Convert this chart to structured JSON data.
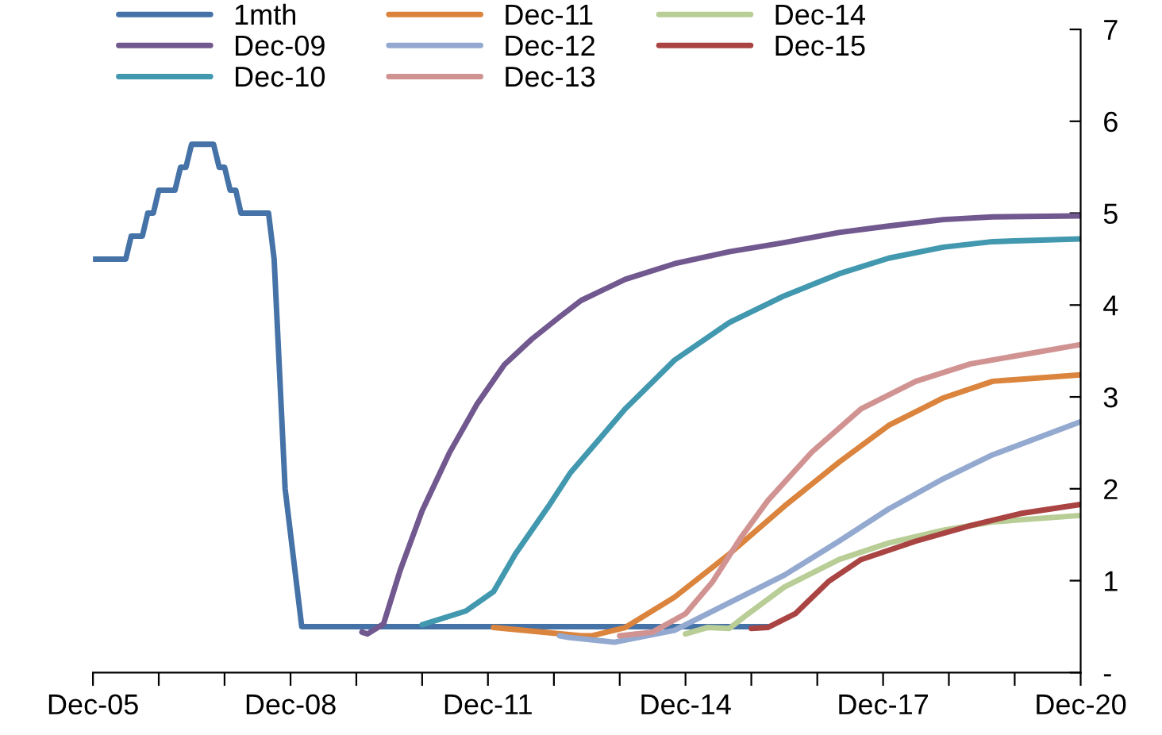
{
  "chart_data": {
    "type": "line",
    "series": [
      {
        "name": "1mth",
        "color": "#4572a7",
        "x": [
          "2005-12",
          "2006-06",
          "2006-07",
          "2006-09",
          "2006-10",
          "2006-11",
          "2006-12",
          "2007-03",
          "2007-04",
          "2007-05",
          "2007-06",
          "2007-10",
          "2007-11",
          "2007-12",
          "2008-01",
          "2008-02",
          "2008-03",
          "2008-08",
          "2008-09",
          "2008-11",
          "2009-02",
          "2016-03"
        ],
        "values": [
          4.5,
          4.5,
          4.75,
          4.75,
          5.0,
          5.0,
          5.25,
          5.25,
          5.5,
          5.5,
          5.75,
          5.75,
          5.5,
          5.5,
          5.25,
          5.25,
          5.0,
          5.0,
          4.5,
          2.0,
          0.5,
          0.5
        ]
      },
      {
        "name": "Dec-09",
        "color": "#71588f",
        "x": [
          "2010-01",
          "2010-02",
          "2010-05",
          "2010-08",
          "2010-12",
          "2011-05",
          "2011-10",
          "2012-03",
          "2012-08",
          "2013-01",
          "2013-05",
          "2014-01",
          "2014-10",
          "2015-08",
          "2016-06",
          "2017-04",
          "2018-01",
          "2018-11",
          "2019-08",
          "2020-12"
        ],
        "values": [
          0.44,
          0.42,
          0.53,
          1.11,
          1.76,
          2.39,
          2.92,
          3.35,
          3.63,
          3.87,
          4.05,
          4.28,
          4.45,
          4.58,
          4.68,
          4.79,
          4.86,
          4.93,
          4.96,
          4.97
        ]
      },
      {
        "name": "Dec-10",
        "color": "#4198af",
        "x": [
          "2010-12",
          "2011-08",
          "2012-01",
          "2012-05",
          "2012-11",
          "2013-03",
          "2014-01",
          "2014-10",
          "2015-08",
          "2016-06",
          "2017-04",
          "2018-01",
          "2018-11",
          "2019-08",
          "2020-12"
        ],
        "values": [
          0.52,
          0.67,
          0.88,
          1.29,
          1.81,
          2.17,
          2.87,
          3.4,
          3.81,
          4.1,
          4.34,
          4.51,
          4.63,
          4.69,
          4.72
        ]
      },
      {
        "name": "Dec-11",
        "color": "#db843d",
        "x": [
          "2012-01",
          "2013-05",
          "2013-07",
          "2014-01",
          "2014-10",
          "2015-08",
          "2016-06",
          "2017-04",
          "2018-01",
          "2018-11",
          "2019-08",
          "2020-12"
        ],
        "values": [
          0.49,
          0.4,
          0.4,
          0.49,
          0.82,
          1.29,
          1.81,
          2.29,
          2.69,
          2.99,
          3.17,
          3.24
        ]
      },
      {
        "name": "Dec-12",
        "color": "#93a9cf",
        "x": [
          "2013-01",
          "2013-03",
          "2013-11",
          "2014-10",
          "2015-08",
          "2016-06",
          "2017-04",
          "2018-01",
          "2018-11",
          "2019-08",
          "2020-12"
        ],
        "values": [
          0.4,
          0.38,
          0.33,
          0.46,
          0.76,
          1.06,
          1.43,
          1.78,
          2.11,
          2.37,
          2.73
        ]
      },
      {
        "name": "Dec-13",
        "color": "#d19392",
        "x": [
          "2013-12",
          "2014-06",
          "2014-12",
          "2015-05",
          "2015-10",
          "2016-03",
          "2016-11",
          "2017-08",
          "2018-06",
          "2019-04",
          "2020-12"
        ],
        "values": [
          0.4,
          0.44,
          0.64,
          0.99,
          1.46,
          1.87,
          2.4,
          2.87,
          3.17,
          3.36,
          3.57
        ]
      },
      {
        "name": "Dec-14",
        "color": "#b9cd96",
        "x": [
          "2014-12",
          "2015-04",
          "2015-08",
          "2015-11",
          "2016-06",
          "2017-04",
          "2018-01",
          "2018-11",
          "2019-08",
          "2020-12"
        ],
        "values": [
          0.42,
          0.49,
          0.48,
          0.62,
          0.93,
          1.23,
          1.41,
          1.55,
          1.64,
          1.71
        ]
      },
      {
        "name": "Dec-15",
        "color": "#a94442",
        "x": [
          "2015-12",
          "2016-03",
          "2016-08",
          "2017-02",
          "2017-08",
          "2018-06",
          "2019-04",
          "2020-01",
          "2020-12"
        ],
        "values": [
          0.48,
          0.49,
          0.64,
          0.99,
          1.23,
          1.43,
          1.6,
          1.73,
          1.83
        ]
      }
    ],
    "xlim": [
      "2005-12",
      "2020-12"
    ],
    "xticks": [
      {
        "value": "2005-12",
        "label": "Dec-05"
      },
      {
        "value": "2006-12",
        "label": null
      },
      {
        "value": "2007-12",
        "label": null
      },
      {
        "value": "2008-12",
        "label": "Dec-08"
      },
      {
        "value": "2009-12",
        "label": null
      },
      {
        "value": "2010-12",
        "label": null
      },
      {
        "value": "2011-12",
        "label": "Dec-11"
      },
      {
        "value": "2012-12",
        "label": null
      },
      {
        "value": "2013-12",
        "label": null
      },
      {
        "value": "2014-12",
        "label": "Dec-14"
      },
      {
        "value": "2015-12",
        "label": null
      },
      {
        "value": "2016-12",
        "label": null
      },
      {
        "value": "2017-12",
        "label": "Dec-17"
      },
      {
        "value": "2018-12",
        "label": null
      },
      {
        "value": "2019-12",
        "label": null
      },
      {
        "value": "2020-12",
        "label": "Dec-20"
      }
    ],
    "ylim": [
      0,
      7
    ],
    "yticks": [
      {
        "value": 0,
        "label": "-"
      },
      1,
      2,
      3,
      4,
      5,
      6,
      7
    ],
    "grid": false,
    "legend": "top left",
    "marker": "none",
    "line_style": "solid"
  }
}
